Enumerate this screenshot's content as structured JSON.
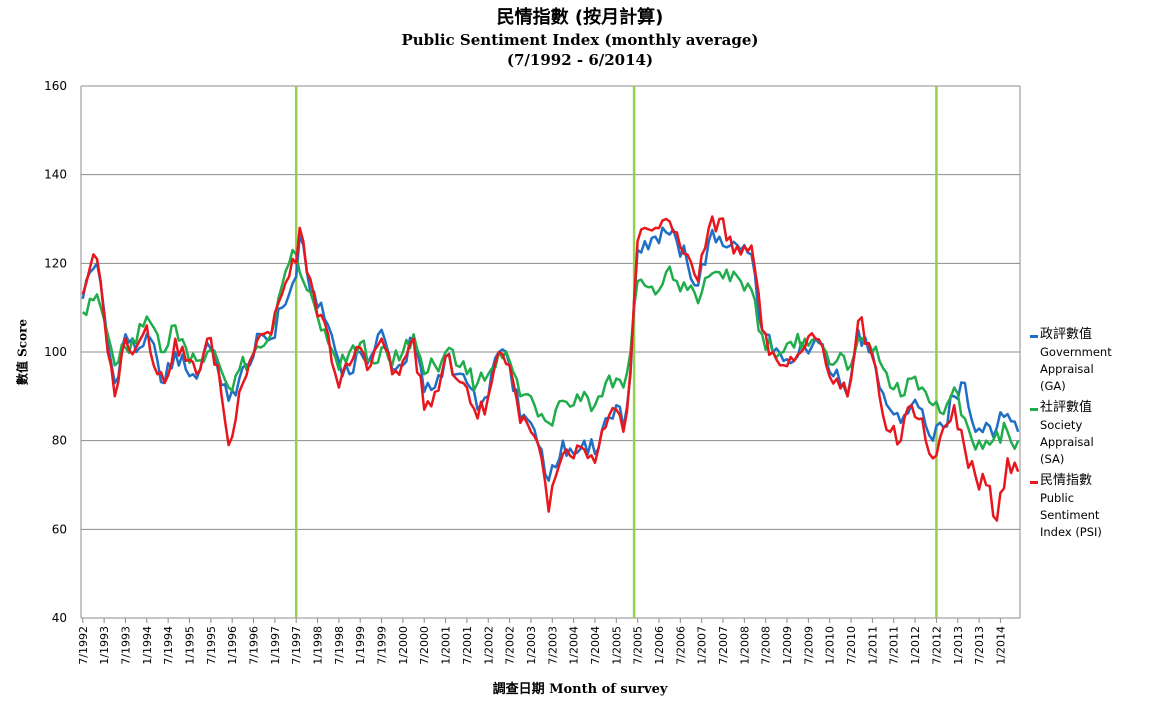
{
  "chart_data": {
    "type": "line",
    "title": "民情指數 (按月計算)",
    "subtitle": "Public Sentiment Index (monthly average)",
    "period": "(7/1992 - 6/2014)",
    "xlabel": "調查日期 Month of survey",
    "ylabel": "數值 Score",
    "ylim": [
      40,
      160
    ],
    "yticks": [
      "40",
      "60",
      "80",
      "100",
      "120",
      "140",
      "160"
    ],
    "xticks": [
      "7/1992",
      "1/1993",
      "7/1993",
      "1/1994",
      "7/1994",
      "1/1995",
      "7/1995",
      "1/1996",
      "7/1996",
      "1/1997",
      "7/1997",
      "1/1998",
      "7/1998",
      "1/1999",
      "7/1999",
      "1/2000",
      "7/2000",
      "1/2001",
      "7/2001",
      "1/2002",
      "7/2002",
      "1/2003",
      "7/2003",
      "1/2004",
      "7/2004",
      "1/2005",
      "7/2005",
      "1/2006",
      "7/2006",
      "1/2007",
      "7/2007",
      "1/2008",
      "7/2008",
      "1/2009",
      "7/2009",
      "1/2010",
      "7/2010",
      "1/2011",
      "7/2011",
      "1/2012",
      "7/2012",
      "1/2013",
      "7/2013",
      "1/2014"
    ],
    "grid": true,
    "legend_position": "right",
    "vertical_markers": [
      "7/1997",
      "6/2005",
      "7/2012"
    ],
    "marker_color": "#92d050",
    "series": [
      {
        "name": "政評數值",
        "name_en": "Government\nAppraisal\n(GA)",
        "color": "#1f6fc5",
        "anchors": [
          [
            "7/1992",
            112
          ],
          [
            "9/1992",
            118
          ],
          [
            "11/1992",
            120
          ],
          [
            "2/1993",
            102
          ],
          [
            "4/1993",
            93
          ],
          [
            "7/1993",
            104
          ],
          [
            "10/1993",
            100
          ],
          [
            "1/1994",
            104
          ],
          [
            "4/1994",
            98
          ],
          [
            "6/1994",
            93
          ],
          [
            "9/1994",
            100
          ],
          [
            "12/1994",
            96
          ],
          [
            "3/1995",
            94
          ],
          [
            "6/1995",
            102
          ],
          [
            "9/1995",
            96
          ],
          [
            "12/1995",
            89
          ],
          [
            "3/1996",
            94
          ],
          [
            "6/1996",
            97
          ],
          [
            "9/1996",
            104
          ],
          [
            "12/1996",
            103
          ],
          [
            "3/1997",
            110
          ],
          [
            "5/1997",
            113
          ],
          [
            "7/1997",
            117
          ],
          [
            "8/1997",
            126
          ],
          [
            "10/1997",
            118
          ],
          [
            "1/1998",
            110
          ],
          [
            "4/1998",
            106
          ],
          [
            "7/1998",
            98
          ],
          [
            "10/1998",
            95
          ],
          [
            "1/1999",
            100
          ],
          [
            "4/1999",
            99
          ],
          [
            "7/1999",
            105
          ],
          [
            "10/1999",
            96
          ],
          [
            "1/2000",
            97
          ],
          [
            "4/2000",
            103
          ],
          [
            "7/2000",
            91
          ],
          [
            "10/2000",
            92
          ],
          [
            "1/2001",
            99
          ],
          [
            "4/2001",
            95
          ],
          [
            "7/2001",
            93
          ],
          [
            "10/2001",
            87
          ],
          [
            "1/2002",
            90
          ],
          [
            "4/2002",
            100
          ],
          [
            "7/2002",
            97
          ],
          [
            "10/2002",
            85
          ],
          [
            "1/2003",
            84
          ],
          [
            "4/2003",
            78
          ],
          [
            "6/2003",
            71
          ],
          [
            "8/2003",
            74
          ],
          [
            "10/2003",
            80
          ],
          [
            "1/2004",
            77
          ],
          [
            "4/2004",
            80
          ],
          [
            "7/2004",
            77
          ],
          [
            "10/2004",
            85
          ],
          [
            "1/2005",
            88
          ],
          [
            "3/2005",
            83
          ],
          [
            "5/2005",
            95
          ],
          [
            "7/2005",
            123
          ],
          [
            "9/2005",
            125
          ],
          [
            "12/2005",
            126
          ],
          [
            "3/2006",
            127
          ],
          [
            "6/2006",
            125
          ],
          [
            "9/2006",
            120
          ],
          [
            "12/2006",
            115
          ],
          [
            "3/2007",
            125
          ],
          [
            "6/2007",
            126
          ],
          [
            "9/2007",
            124
          ],
          [
            "12/2007",
            123
          ],
          [
            "3/2008",
            122
          ],
          [
            "6/2008",
            105
          ],
          [
            "9/2008",
            100
          ],
          [
            "12/2008",
            98
          ],
          [
            "3/2009",
            98
          ],
          [
            "6/2009",
            101
          ],
          [
            "9/2009",
            103
          ],
          [
            "12/2009",
            98
          ],
          [
            "3/2010",
            96
          ],
          [
            "6/2010",
            90
          ],
          [
            "9/2010",
            105
          ],
          [
            "12/2010",
            100
          ],
          [
            "3/2011",
            92
          ],
          [
            "6/2011",
            87
          ],
          [
            "9/2011",
            84
          ],
          [
            "12/2011",
            88
          ],
          [
            "3/2012",
            87
          ],
          [
            "6/2012",
            80
          ],
          [
            "9/2012",
            83
          ],
          [
            "12/2012",
            90
          ],
          [
            "3/2013",
            93
          ],
          [
            "6/2013",
            82
          ],
          [
            "9/2013",
            84
          ],
          [
            "12/2013",
            83
          ],
          [
            "3/2014",
            86
          ],
          [
            "6/2014",
            82
          ]
        ]
      },
      {
        "name": "社評數值",
        "name_en": "Society\nAppraisal\n(SA)",
        "color": "#21ad4b",
        "anchors": [
          [
            "7/1992",
            109
          ],
          [
            "9/1992",
            112
          ],
          [
            "11/1992",
            113
          ],
          [
            "2/1993",
            104
          ],
          [
            "4/1993",
            97
          ],
          [
            "7/1993",
            101
          ],
          [
            "10/1993",
            102
          ],
          [
            "1/1994",
            108
          ],
          [
            "4/1994",
            104
          ],
          [
            "6/1994",
            100
          ],
          [
            "9/1994",
            106
          ],
          [
            "12/1994",
            101
          ],
          [
            "3/1995",
            98
          ],
          [
            "6/1995",
            100
          ],
          [
            "9/1995",
            98
          ],
          [
            "12/1995",
            92
          ],
          [
            "3/1996",
            96
          ],
          [
            "6/1996",
            98
          ],
          [
            "9/1996",
            101
          ],
          [
            "12/1996",
            104
          ],
          [
            "3/1997",
            115
          ],
          [
            "5/1997",
            120
          ],
          [
            "7/1997",
            122
          ],
          [
            "8/1997",
            118
          ],
          [
            "10/1997",
            114
          ],
          [
            "1/1998",
            108
          ],
          [
            "4/1998",
            102
          ],
          [
            "7/1998",
            96
          ],
          [
            "10/1998",
            100
          ],
          [
            "1/1999",
            102
          ],
          [
            "4/1999",
            98
          ],
          [
            "7/1999",
            101
          ],
          [
            "10/1999",
            97
          ],
          [
            "1/2000",
            100
          ],
          [
            "4/2000",
            104
          ],
          [
            "7/2000",
            95
          ],
          [
            "10/2000",
            97
          ],
          [
            "1/2001",
            100
          ],
          [
            "4/2001",
            97
          ],
          [
            "7/2001",
            95
          ],
          [
            "10/2001",
            93
          ],
          [
            "1/2002",
            95
          ],
          [
            "4/2002",
            100
          ],
          [
            "7/2002",
            98
          ],
          [
            "10/2002",
            90
          ],
          [
            "1/2003",
            90
          ],
          [
            "4/2003",
            86
          ],
          [
            "6/2003",
            84
          ],
          [
            "8/2003",
            87
          ],
          [
            "10/2003",
            89
          ],
          [
            "1/2004",
            88
          ],
          [
            "4/2004",
            91
          ],
          [
            "7/2004",
            88
          ],
          [
            "10/2004",
            93
          ],
          [
            "1/2005",
            94
          ],
          [
            "3/2005",
            92
          ],
          [
            "5/2005",
            100
          ],
          [
            "7/2005",
            116
          ],
          [
            "9/2005",
            115
          ],
          [
            "12/2005",
            113
          ],
          [
            "3/2006",
            118
          ],
          [
            "6/2006",
            116
          ],
          [
            "9/2006",
            114
          ],
          [
            "12/2006",
            111
          ],
          [
            "3/2007",
            117
          ],
          [
            "6/2007",
            118
          ],
          [
            "9/2007",
            116
          ],
          [
            "12/2007",
            116
          ],
          [
            "3/2008",
            114
          ],
          [
            "6/2008",
            104
          ],
          [
            "9/2008",
            100
          ],
          [
            "12/2008",
            100
          ],
          [
            "3/2009",
            101
          ],
          [
            "6/2009",
            103
          ],
          [
            "9/2009",
            103
          ],
          [
            "12/2009",
            100
          ],
          [
            "3/2010",
            98
          ],
          [
            "6/2010",
            96
          ],
          [
            "9/2010",
            103
          ],
          [
            "12/2010",
            102
          ],
          [
            "3/2011",
            98
          ],
          [
            "6/2011",
            92
          ],
          [
            "9/2011",
            90
          ],
          [
            "12/2011",
            94
          ],
          [
            "3/2012",
            92
          ],
          [
            "6/2012",
            88
          ],
          [
            "9/2012",
            86
          ],
          [
            "12/2012",
            92
          ],
          [
            "3/2013",
            85
          ],
          [
            "6/2013",
            78
          ],
          [
            "9/2013",
            80
          ],
          [
            "12/2013",
            82
          ],
          [
            "3/2014",
            82
          ],
          [
            "6/2014",
            80
          ]
        ]
      },
      {
        "name": "民情指數",
        "name_en": "Public\nSentiment\nIndex (PSI)",
        "color": "#e8161d",
        "anchors": [
          [
            "7/1992",
            113
          ],
          [
            "9/1992",
            119
          ],
          [
            "11/1992",
            121
          ],
          [
            "2/1993",
            100
          ],
          [
            "4/1993",
            90
          ],
          [
            "7/1993",
            103
          ],
          [
            "10/1993",
            101
          ],
          [
            "1/1994",
            106
          ],
          [
            "4/1994",
            95
          ],
          [
            "6/1994",
            93
          ],
          [
            "9/1994",
            103
          ],
          [
            "12/1994",
            98
          ],
          [
            "3/1995",
            95
          ],
          [
            "6/1995",
            103
          ],
          [
            "9/1995",
            97
          ],
          [
            "12/1995",
            79
          ],
          [
            "3/1996",
            91
          ],
          [
            "6/1996",
            98
          ],
          [
            "9/1996",
            104
          ],
          [
            "12/1996",
            104
          ],
          [
            "3/1997",
            113
          ],
          [
            "5/1997",
            117
          ],
          [
            "7/1997",
            120
          ],
          [
            "8/1997",
            128
          ],
          [
            "10/1997",
            118
          ],
          [
            "1/1998",
            108
          ],
          [
            "4/1998",
            104
          ],
          [
            "7/1998",
            92
          ],
          [
            "10/1998",
            97
          ],
          [
            "1/1999",
            101
          ],
          [
            "4/1999",
            97
          ],
          [
            "7/1999",
            103
          ],
          [
            "10/1999",
            95
          ],
          [
            "1/2000",
            98
          ],
          [
            "4/2000",
            103
          ],
          [
            "7/2000",
            87
          ],
          [
            "10/2000",
            91
          ],
          [
            "1/2001",
            99
          ],
          [
            "4/2001",
            94
          ],
          [
            "7/2001",
            92
          ],
          [
            "10/2001",
            85
          ],
          [
            "1/2002",
            90
          ],
          [
            "4/2002",
            100
          ],
          [
            "7/2002",
            97
          ],
          [
            "10/2002",
            84
          ],
          [
            "1/2003",
            82
          ],
          [
            "4/2003",
            76
          ],
          [
            "6/2003",
            64
          ],
          [
            "8/2003",
            72
          ],
          [
            "10/2003",
            77
          ],
          [
            "1/2004",
            76
          ],
          [
            "4/2004",
            78
          ],
          [
            "7/2004",
            75
          ],
          [
            "10/2004",
            83
          ],
          [
            "1/2005",
            87
          ],
          [
            "3/2005",
            82
          ],
          [
            "5/2005",
            96
          ],
          [
            "7/2005",
            125
          ],
          [
            "9/2005",
            128
          ],
          [
            "12/2005",
            128
          ],
          [
            "3/2006",
            130
          ],
          [
            "6/2006",
            127
          ],
          [
            "9/2006",
            122
          ],
          [
            "12/2006",
            116
          ],
          [
            "3/2007",
            128
          ],
          [
            "6/2007",
            130
          ],
          [
            "9/2007",
            126
          ],
          [
            "12/2007",
            122
          ],
          [
            "3/2008",
            124
          ],
          [
            "6/2008",
            105
          ],
          [
            "9/2008",
            100
          ],
          [
            "12/2008",
            97
          ],
          [
            "3/2009",
            98
          ],
          [
            "6/2009",
            101
          ],
          [
            "9/2009",
            103
          ],
          [
            "12/2009",
            97
          ],
          [
            "3/2010",
            94
          ],
          [
            "6/2010",
            90
          ],
          [
            "9/2010",
            107
          ],
          [
            "12/2010",
            102
          ],
          [
            "3/2011",
            90
          ],
          [
            "6/2011",
            82
          ],
          [
            "9/2011",
            80
          ],
          [
            "12/2011",
            88
          ],
          [
            "3/2012",
            85
          ],
          [
            "6/2012",
            76
          ],
          [
            "9/2012",
            83
          ],
          [
            "12/2012",
            88
          ],
          [
            "3/2013",
            78
          ],
          [
            "6/2013",
            72
          ],
          [
            "9/2013",
            70
          ],
          [
            "12/2013",
            62
          ],
          [
            "3/2014",
            76
          ],
          [
            "6/2014",
            73
          ]
        ]
      }
    ]
  }
}
